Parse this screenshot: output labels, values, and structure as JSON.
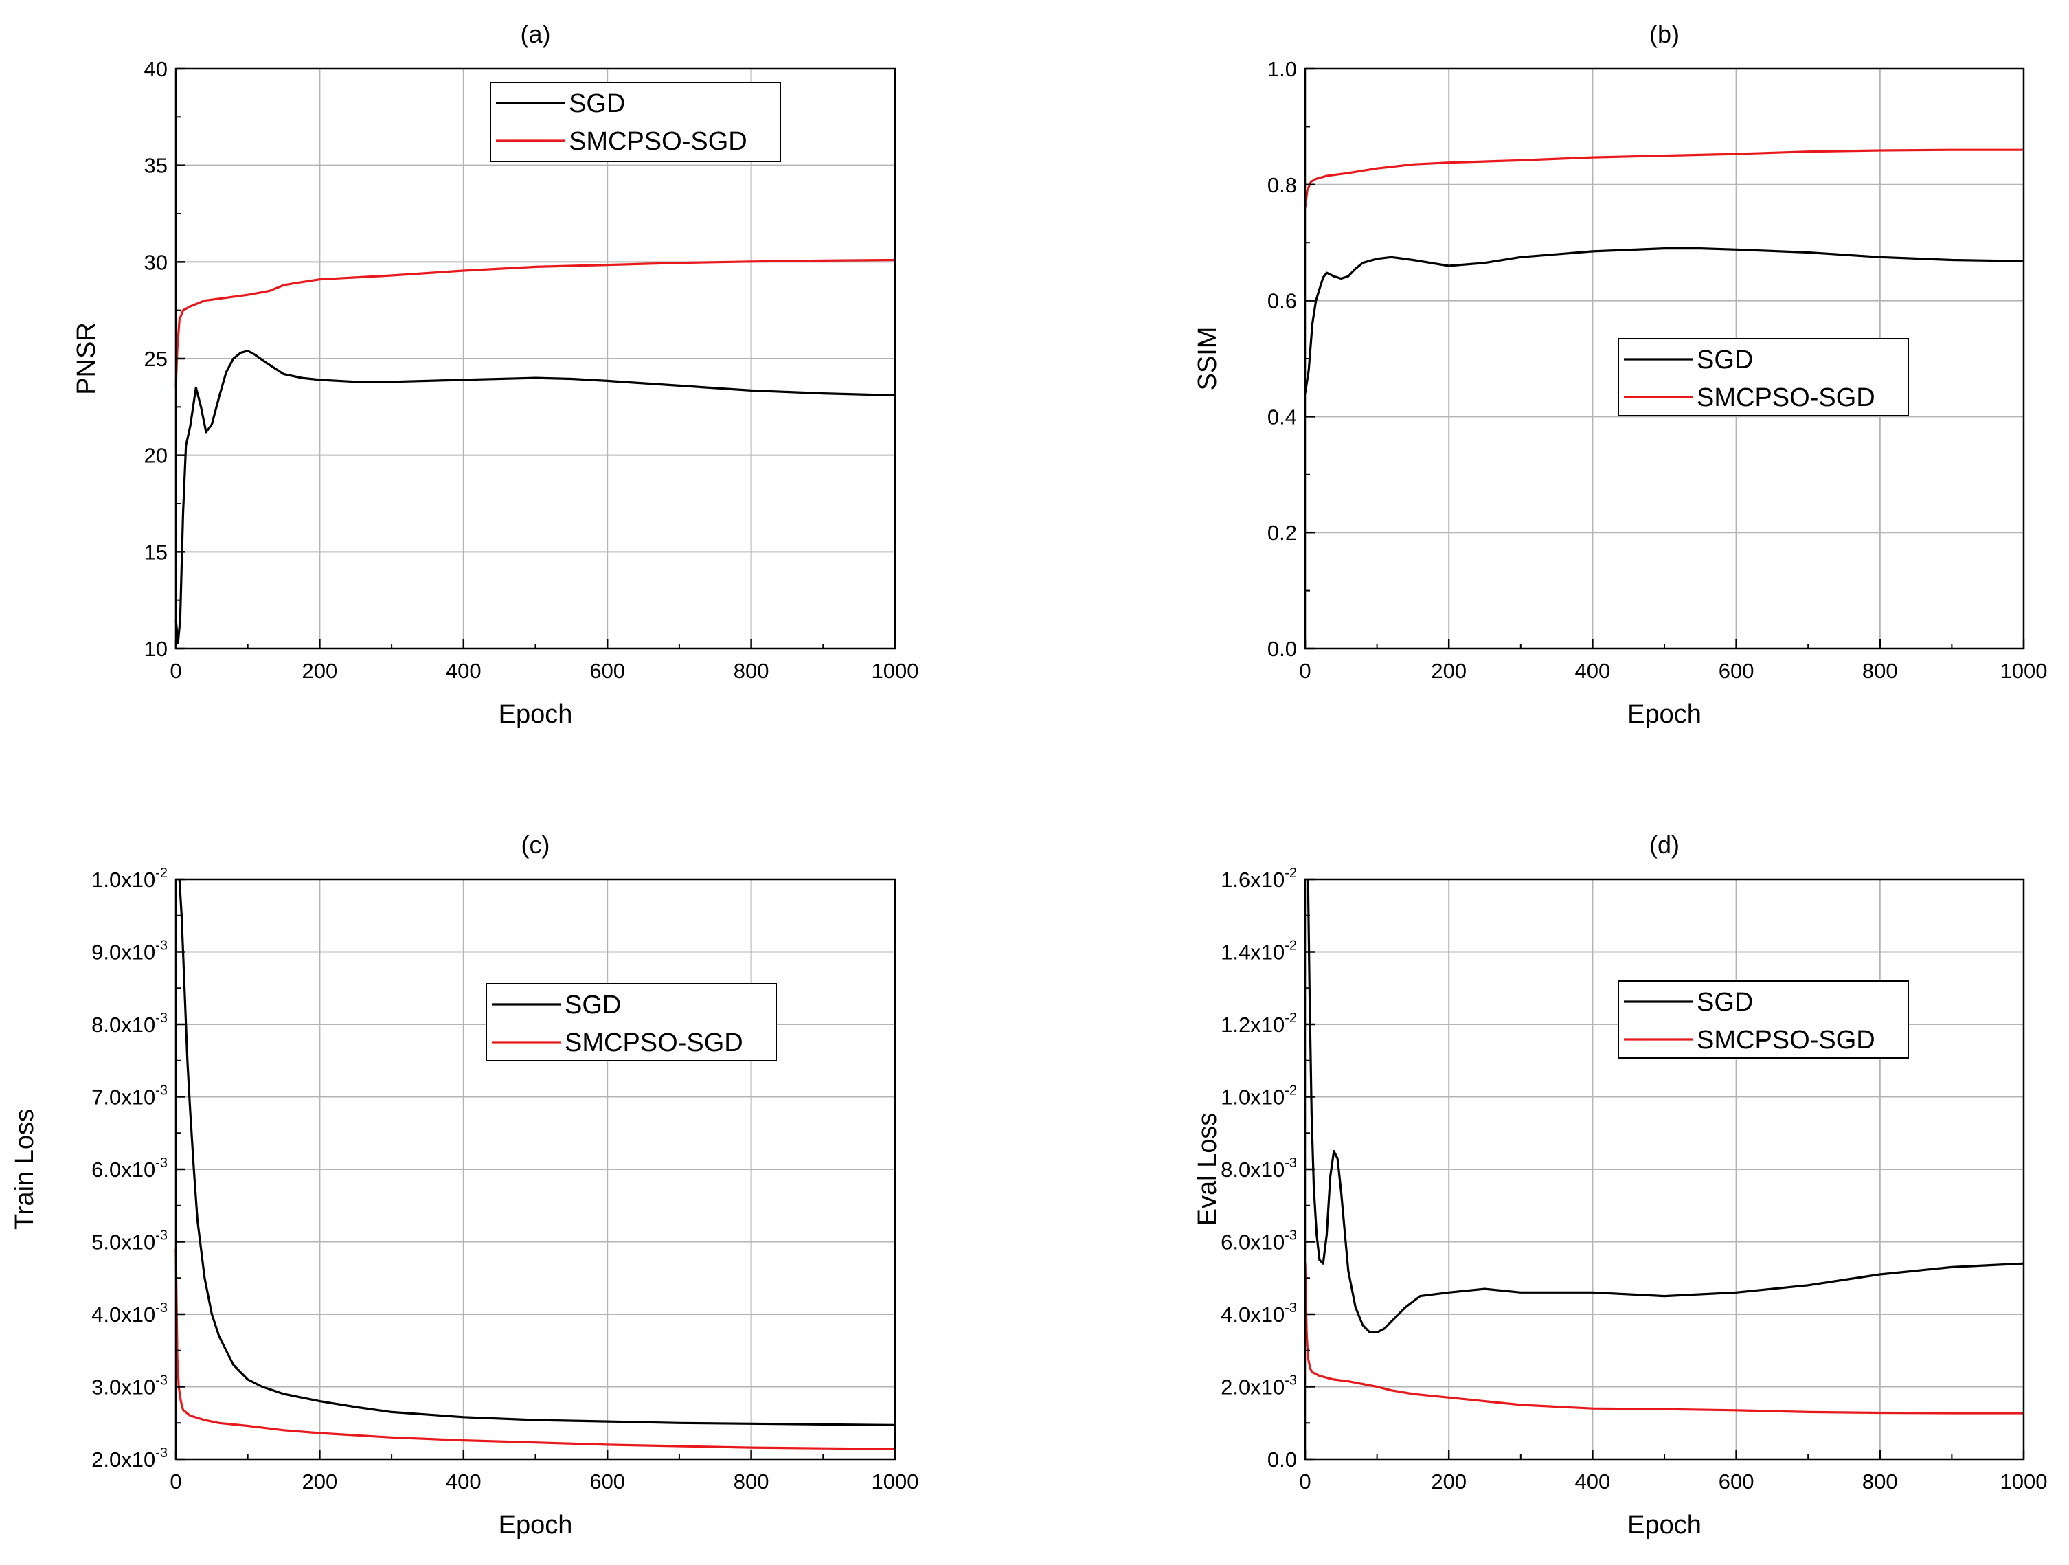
{
  "colors": {
    "SGD": "#000000",
    "SMCPSO-SGD": "#e8191c"
  },
  "chart_data": [
    {
      "id": "a",
      "type": "line",
      "title": "(a)",
      "xlabel": "Epoch",
      "ylabel": "PNSR",
      "xlim": [
        0,
        1000
      ],
      "ylim": [
        10,
        40
      ],
      "xticks": [
        0,
        200,
        400,
        600,
        800,
        1000
      ],
      "xtick_labels": [
        "0",
        "200",
        "400",
        "600",
        "800",
        "1000"
      ],
      "yticks": [
        10,
        15,
        20,
        25,
        30,
        35,
        40
      ],
      "ytick_labels": [
        {
          "m": "10"
        },
        {
          "m": "15"
        },
        {
          "m": "20"
        },
        {
          "m": "25"
        },
        {
          "m": "30"
        },
        {
          "m": "35"
        },
        {
          "m": "40"
        }
      ],
      "grid": true,
      "legend": "top-center",
      "series": [
        {
          "name": "SGD",
          "x": [
            0,
            3,
            6,
            10,
            14,
            20,
            28,
            35,
            42,
            50,
            60,
            70,
            80,
            90,
            100,
            110,
            125,
            150,
            175,
            200,
            250,
            300,
            400,
            500,
            550,
            600,
            700,
            800,
            900,
            1000
          ],
          "y": [
            11.5,
            10.3,
            11.5,
            17,
            20.5,
            21.5,
            23.5,
            22.5,
            21.2,
            21.6,
            23,
            24.3,
            25,
            25.3,
            25.4,
            25.2,
            24.8,
            24.2,
            24,
            23.9,
            23.8,
            23.8,
            23.9,
            24,
            23.95,
            23.85,
            23.6,
            23.35,
            23.2,
            23.1
          ]
        },
        {
          "name": "SMCPSO-SGD",
          "x": [
            0,
            2,
            5,
            10,
            20,
            40,
            60,
            100,
            130,
            150,
            165,
            200,
            300,
            400,
            500,
            600,
            700,
            800,
            900,
            1000
          ],
          "y": [
            23.5,
            25.5,
            27,
            27.5,
            27.7,
            28,
            28.1,
            28.3,
            28.5,
            28.8,
            28.9,
            29.1,
            29.3,
            29.55,
            29.75,
            29.85,
            29.95,
            30.02,
            30.07,
            30.1
          ]
        }
      ]
    },
    {
      "id": "b",
      "type": "line",
      "title": "(b)",
      "xlabel": "Epoch",
      "ylabel": "SSIM",
      "xlim": [
        0,
        1000
      ],
      "ylim": [
        0,
        1
      ],
      "xticks": [
        0,
        200,
        400,
        600,
        800,
        1000
      ],
      "xtick_labels": [
        "0",
        "200",
        "400",
        "600",
        "800",
        "1000"
      ],
      "yticks": [
        0,
        0.2,
        0.4,
        0.6,
        0.8,
        1.0
      ],
      "ytick_labels": [
        {
          "m": "0.0"
        },
        {
          "m": "0.2"
        },
        {
          "m": "0.4"
        },
        {
          "m": "0.6"
        },
        {
          "m": "0.8"
        },
        {
          "m": "1.0"
        }
      ],
      "grid": true,
      "legend": "center-right",
      "series": [
        {
          "name": "SGD",
          "x": [
            0,
            5,
            10,
            15,
            20,
            25,
            30,
            40,
            50,
            60,
            70,
            80,
            100,
            120,
            150,
            200,
            250,
            300,
            400,
            500,
            550,
            600,
            700,
            800,
            900,
            1000
          ],
          "y": [
            0.44,
            0.48,
            0.56,
            0.6,
            0.62,
            0.64,
            0.648,
            0.642,
            0.638,
            0.642,
            0.655,
            0.665,
            0.672,
            0.675,
            0.67,
            0.66,
            0.665,
            0.675,
            0.685,
            0.69,
            0.69,
            0.688,
            0.683,
            0.675,
            0.67,
            0.668
          ]
        },
        {
          "name": "SMCPSO-SGD",
          "x": [
            0,
            3,
            8,
            15,
            30,
            60,
            100,
            150,
            200,
            300,
            400,
            500,
            600,
            700,
            800,
            900,
            1000
          ],
          "y": [
            0.76,
            0.79,
            0.805,
            0.81,
            0.815,
            0.82,
            0.828,
            0.835,
            0.838,
            0.842,
            0.847,
            0.85,
            0.853,
            0.857,
            0.859,
            0.86,
            0.86
          ]
        }
      ]
    },
    {
      "id": "c",
      "type": "line",
      "title": "(c)",
      "xlabel": "Epoch",
      "ylabel": "Train Loss",
      "xlim": [
        0,
        1000
      ],
      "ylim": [
        0.002,
        0.01
      ],
      "xticks": [
        0,
        200,
        400,
        600,
        800,
        1000
      ],
      "xtick_labels": [
        "0",
        "200",
        "400",
        "600",
        "800",
        "1000"
      ],
      "yticks": [
        0.002,
        0.003,
        0.004,
        0.005,
        0.006,
        0.007,
        0.008,
        0.009,
        0.01
      ],
      "ytick_labels": [
        {
          "m": "2.0x10",
          "e": "-3"
        },
        {
          "m": "3.0x10",
          "e": "-3"
        },
        {
          "m": "4.0x10",
          "e": "-3"
        },
        {
          "m": "5.0x10",
          "e": "-3"
        },
        {
          "m": "6.0x10",
          "e": "-3"
        },
        {
          "m": "7.0x10",
          "e": "-3"
        },
        {
          "m": "8.0x10",
          "e": "-3"
        },
        {
          "m": "9.0x10",
          "e": "-3"
        },
        {
          "m": "1.0x10",
          "e": "-2"
        }
      ],
      "grid": true,
      "legend": "top-center",
      "series": [
        {
          "name": "SGD",
          "x": [
            5,
            8,
            12,
            16,
            20,
            25,
            30,
            40,
            50,
            60,
            70,
            80,
            100,
            120,
            150,
            200,
            250,
            300,
            400,
            500,
            600,
            700,
            800,
            900,
            1000
          ],
          "y": [
            0.01,
            0.0095,
            0.0085,
            0.0075,
            0.0068,
            0.006,
            0.0053,
            0.0045,
            0.004,
            0.0037,
            0.0035,
            0.0033,
            0.0031,
            0.003,
            0.0029,
            0.0028,
            0.00272,
            0.00265,
            0.00258,
            0.00254,
            0.00252,
            0.0025,
            0.00249,
            0.00248,
            0.00247
          ]
        },
        {
          "name": "SMCPSO-SGD",
          "x": [
            0,
            2,
            4,
            7,
            10,
            20,
            40,
            60,
            100,
            150,
            200,
            300,
            400,
            500,
            600,
            700,
            800,
            900,
            1000
          ],
          "y": [
            0.0049,
            0.0034,
            0.003,
            0.0028,
            0.00268,
            0.0026,
            0.00254,
            0.0025,
            0.00246,
            0.0024,
            0.00236,
            0.0023,
            0.00226,
            0.00223,
            0.0022,
            0.00218,
            0.00216,
            0.00215,
            0.00214
          ]
        }
      ]
    },
    {
      "id": "d",
      "type": "line",
      "title": "(d)",
      "xlabel": "Epoch",
      "ylabel": "Eval Loss",
      "xlim": [
        0,
        1000
      ],
      "ylim": [
        0,
        0.016
      ],
      "xticks": [
        0,
        200,
        400,
        600,
        800,
        1000
      ],
      "xtick_labels": [
        "0",
        "200",
        "400",
        "600",
        "800",
        "1000"
      ],
      "yticks": [
        0,
        0.002,
        0.004,
        0.006,
        0.008,
        0.01,
        0.012,
        0.014,
        0.016
      ],
      "ytick_labels": [
        {
          "m": "0.0"
        },
        {
          "m": "2.0x10",
          "e": "-3"
        },
        {
          "m": "4.0x10",
          "e": "-3"
        },
        {
          "m": "6.0x10",
          "e": "-3"
        },
        {
          "m": "8.0x10",
          "e": "-3"
        },
        {
          "m": "1.0x10",
          "e": "-2"
        },
        {
          "m": "1.2x10",
          "e": "-2"
        },
        {
          "m": "1.4x10",
          "e": "-2"
        },
        {
          "m": "1.6x10",
          "e": "-2"
        }
      ],
      "grid": true,
      "legend": "top-center",
      "series": [
        {
          "name": "SGD",
          "x": [
            4,
            6,
            9,
            12,
            16,
            20,
            25,
            30,
            35,
            40,
            45,
            50,
            55,
            60,
            70,
            80,
            90,
            100,
            110,
            120,
            140,
            160,
            200,
            250,
            300,
            400,
            500,
            600,
            700,
            800,
            900,
            1000
          ],
          "y": [
            0.016,
            0.013,
            0.0095,
            0.0075,
            0.0062,
            0.0055,
            0.0054,
            0.0062,
            0.0078,
            0.0085,
            0.0083,
            0.0074,
            0.0063,
            0.0052,
            0.0042,
            0.0037,
            0.0035,
            0.0035,
            0.0036,
            0.0038,
            0.0042,
            0.0045,
            0.0046,
            0.0047,
            0.0046,
            0.0046,
            0.0045,
            0.0046,
            0.0048,
            0.0051,
            0.0053,
            0.0054
          ]
        },
        {
          "name": "SMCPSO-SGD",
          "x": [
            0,
            2,
            4,
            7,
            10,
            20,
            40,
            60,
            100,
            120,
            150,
            200,
            300,
            400,
            500,
            600,
            700,
            800,
            900,
            1000
          ],
          "y": [
            0.0054,
            0.0035,
            0.0028,
            0.0025,
            0.0024,
            0.0023,
            0.0022,
            0.00215,
            0.002,
            0.0019,
            0.0018,
            0.0017,
            0.0015,
            0.0014,
            0.00138,
            0.00135,
            0.0013,
            0.00128,
            0.00127,
            0.00127
          ]
        }
      ]
    }
  ]
}
